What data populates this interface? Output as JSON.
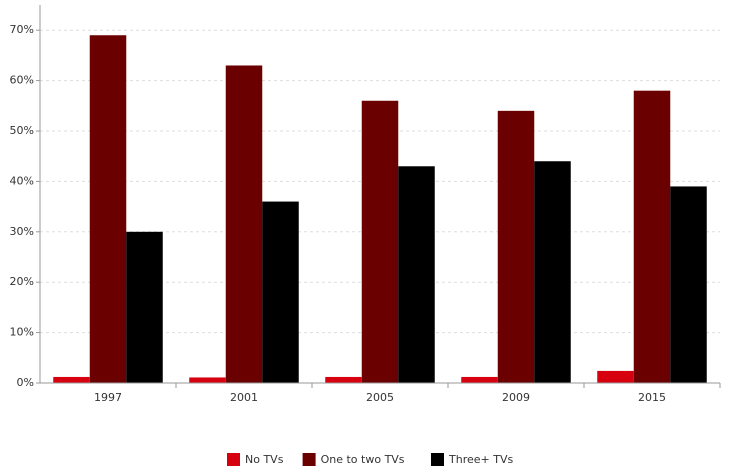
{
  "chart_data": {
    "type": "bar",
    "categories": [
      "1997",
      "2001",
      "2005",
      "2009",
      "2015"
    ],
    "series": [
      {
        "name": "No TVs",
        "color": "#d7000f",
        "values": [
          1.2,
          1.1,
          1.2,
          1.2,
          2.4
        ]
      },
      {
        "name": "One to two TVs",
        "color": "#6b0000",
        "values": [
          69,
          63,
          56,
          54,
          58
        ]
      },
      {
        "name": "Three+ TVs",
        "color": "#000000",
        "values": [
          30,
          36,
          43,
          44,
          39
        ]
      }
    ],
    "ylim": [
      0,
      75
    ],
    "yticks": [
      {
        "value": 0,
        "label": "0%"
      },
      {
        "value": 10,
        "label": "10%"
      },
      {
        "value": 20,
        "label": "20%"
      },
      {
        "value": 30,
        "label": "30%"
      },
      {
        "value": 40,
        "label": "40%"
      },
      {
        "value": 50,
        "label": "50%"
      },
      {
        "value": 60,
        "label": "60%"
      },
      {
        "value": 70,
        "label": "70%"
      }
    ],
    "grid": true,
    "legend": "bottom"
  }
}
